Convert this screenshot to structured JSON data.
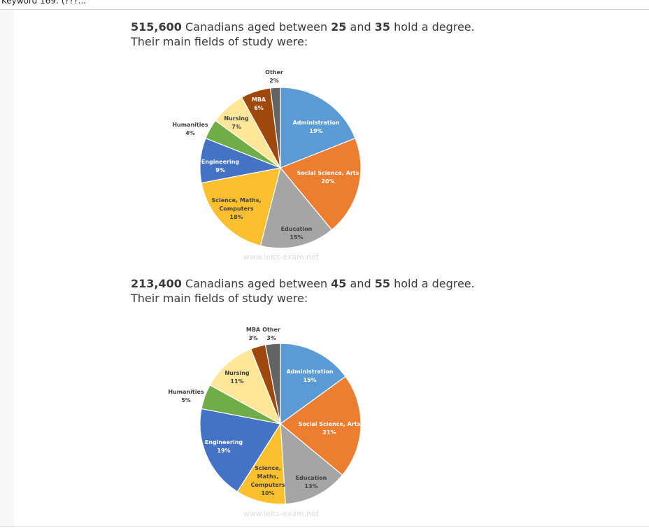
{
  "topbar": {
    "text": "Keyword 169: (???..."
  },
  "charts": [
    {
      "heading_num": "515,600",
      "heading_mid1": " Canadians aged between ",
      "age_from": "25",
      "heading_and": " and ",
      "age_to": "35",
      "heading_end": " hold a degree.",
      "heading_line2": "Their main fields of study were:",
      "watermark": "www.ielts-exam.net"
    },
    {
      "heading_num": "213,400",
      "heading_mid1": " Canadians aged between ",
      "age_from": "45",
      "heading_and": " and ",
      "age_to": "55",
      "heading_end": " hold a degree.",
      "heading_line2": "Their main fields of study were:",
      "watermark": "www.ielts-exam.net"
    }
  ],
  "chart_data": [
    {
      "type": "pie",
      "title": "515,600 Canadians aged between 25 and 35 hold a degree. Their main fields of study were:",
      "slices": [
        {
          "label": "Administration",
          "pct_label": "19%",
          "value": 19,
          "color": "#5b9bd5"
        },
        {
          "label": "Social Science, Arts",
          "pct_label": "20%",
          "value": 20,
          "color": "#ed7d31"
        },
        {
          "label": "Education",
          "pct_label": "15%",
          "value": 15,
          "color": "#a5a5a5"
        },
        {
          "label": "Science, Maths, Computers",
          "pct_label": "18%",
          "value": 18,
          "color": "#fcc02e"
        },
        {
          "label": "Engineering",
          "pct_label": "9%",
          "value": 9,
          "color": "#4472c4"
        },
        {
          "label": "Humanities",
          "pct_label": "4%",
          "value": 4,
          "color": "#70ad47"
        },
        {
          "label": "Nursing",
          "pct_label": "7%",
          "value": 7,
          "color": "#ffe699"
        },
        {
          "label": "MBA",
          "pct_label": "6%",
          "value": 6,
          "color": "#9e480e"
        },
        {
          "label": "Other",
          "pct_label": "2%",
          "value": 2,
          "color": "#636363"
        }
      ]
    },
    {
      "type": "pie",
      "title": "213,400 Canadians aged between 45 and 55 hold a degree. Their main fields of study were:",
      "slices": [
        {
          "label": "Administration",
          "pct_label": "15%",
          "value": 15,
          "color": "#5b9bd5"
        },
        {
          "label": "Social Science, Arts",
          "pct_label": "21%",
          "value": 21,
          "color": "#ed7d31"
        },
        {
          "label": "Education",
          "pct_label": "13%",
          "value": 13,
          "color": "#a5a5a5"
        },
        {
          "label": "Science, Maths, Computers",
          "pct_label": "10%",
          "value": 10,
          "color": "#fcc02e"
        },
        {
          "label": "Engineering",
          "pct_label": "19%",
          "value": 19,
          "color": "#4472c4"
        },
        {
          "label": "Humanities",
          "pct_label": "5%",
          "value": 5,
          "color": "#70ad47"
        },
        {
          "label": "Nursing",
          "pct_label": "11%",
          "value": 11,
          "color": "#ffe699"
        },
        {
          "label": "MBA",
          "pct_label": "3%",
          "value": 3,
          "color": "#9e480e"
        },
        {
          "label": "Other",
          "pct_label": "3%",
          "value": 3,
          "color": "#636363"
        }
      ]
    }
  ]
}
